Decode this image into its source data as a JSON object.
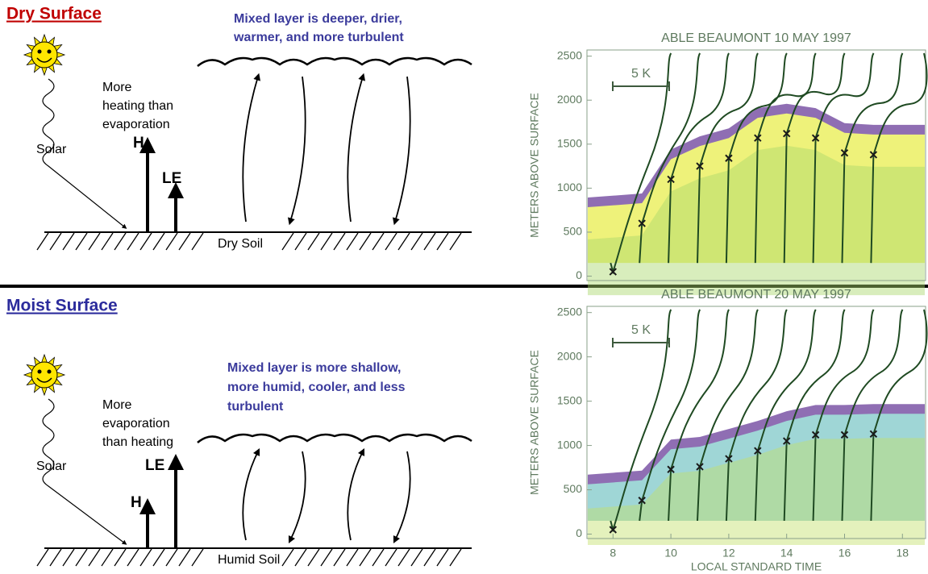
{
  "dry": {
    "title": "Dry Surface",
    "caption": [
      "Mixed layer is deeper, drier,",
      "warmer, and more turbulent"
    ],
    "flux_note": [
      "More",
      "heating than",
      "evaporation"
    ],
    "solar": "Solar",
    "h": "H",
    "le": "LE",
    "soil": "Dry Soil"
  },
  "moist": {
    "title": "Moist Surface",
    "caption": [
      "Mixed layer is more shallow,",
      "more humid, cooler, and less",
      "turbulent"
    ],
    "flux_note": [
      "More",
      "evaporation",
      "than heating"
    ],
    "solar": "Solar",
    "h": "H",
    "le": "LE",
    "soil": "Humid Soil"
  },
  "chart_data": [
    {
      "type": "scatter",
      "title": "ABLE BEAUMONT 10 MAY 1997",
      "ylabel": "METERS ABOVE SURFACE",
      "scale_label": "5 K",
      "x": [
        8,
        9,
        10,
        11,
        12,
        13,
        14,
        15,
        16,
        17
      ],
      "values": [
        50,
        600,
        1100,
        1250,
        1340,
        1570,
        1620,
        1570,
        1400,
        1380
      ],
      "xlim": [
        7.1,
        18.8
      ],
      "ylim": [
        -50,
        2570
      ],
      "yticks": [
        0,
        500,
        1000,
        1500,
        2000,
        2500
      ],
      "color": "#1a1a1a"
    },
    {
      "type": "scatter",
      "title": "ABLE BEAUMONT 20 MAY 1997",
      "ylabel": "METERS ABOVE SURFACE",
      "xlabel": "LOCAL STANDARD TIME",
      "scale_label": "5 K",
      "x": [
        8,
        9,
        10,
        11,
        12,
        13,
        14,
        15,
        16,
        17
      ],
      "values": [
        50,
        380,
        730,
        760,
        850,
        940,
        1050,
        1120,
        1120,
        1130
      ],
      "xlim": [
        7.1,
        18.8
      ],
      "ylim": [
        -50,
        2570
      ],
      "xticks": [
        8,
        10,
        12,
        14,
        16,
        18
      ],
      "yticks": [
        0,
        500,
        1000,
        1500,
        2000,
        2500
      ],
      "color": "#1a1a1a"
    }
  ]
}
